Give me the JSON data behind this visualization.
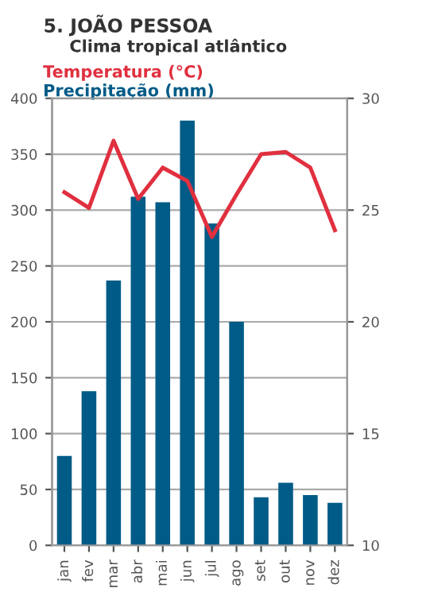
{
  "chart_data": {
    "type": "bar",
    "title": "5. JOÃO PESSOA",
    "subtitle": "Clima tropical atlântico",
    "legend": "top left",
    "categories": [
      "jan",
      "fev",
      "mar",
      "abr",
      "mai",
      "jun",
      "jul",
      "ago",
      "set",
      "out",
      "nov",
      "dez"
    ],
    "series": [
      {
        "name": "Precipitação (mm)",
        "color": "#005b87",
        "values": [
          80,
          138,
          237,
          312,
          307,
          380,
          288,
          200,
          43,
          56,
          45,
          38
        ]
      },
      {
        "name": "Temperatura (°C)",
        "type": "line",
        "axis": "y2",
        "color": "#e0303f",
        "values": [
          25.8,
          25.1,
          28.1,
          25.5,
          26.9,
          26.3,
          23.8,
          25.7,
          27.5,
          27.6,
          26.9,
          24.1
        ]
      }
    ],
    "ylim": [
      0,
      400
    ],
    "yticks": [
      0,
      50,
      100,
      150,
      200,
      250,
      300,
      350,
      400
    ],
    "y2lim": [
      10,
      30
    ],
    "y2ticks": [
      10,
      15,
      20,
      25,
      30
    ],
    "grid": "y"
  }
}
